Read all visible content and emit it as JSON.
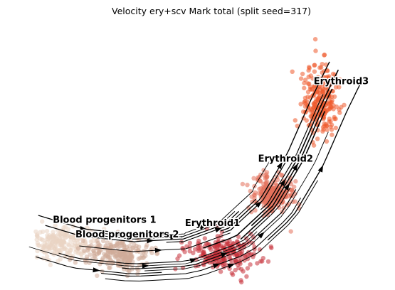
{
  "chart_data": {
    "type": "scatter",
    "subtype": "umap-velocity-stream",
    "title": "Velocity ery+scv Mark total (split seed=317)",
    "xlabel": "",
    "ylabel": "",
    "grid": false,
    "axes_visible": false,
    "legend": "on-data",
    "clusters": [
      {
        "name": "Blood progenitors 1",
        "color": "#ead3c2",
        "center": [
          1.6,
          1.4
        ],
        "spread": [
          1.1,
          0.55
        ]
      },
      {
        "name": "Blood progenitors 2",
        "color": "#cfab99",
        "center": [
          3.2,
          1.0
        ],
        "spread": [
          1.1,
          0.5
        ]
      },
      {
        "name": "Erythroid1",
        "color": "#c7323a",
        "center": [
          6.2,
          1.1
        ],
        "spread": [
          1.1,
          0.6
        ]
      },
      {
        "name": "Erythroid2",
        "color": "#e3705a",
        "center": [
          7.6,
          3.1
        ],
        "spread": [
          0.8,
          0.7
        ]
      },
      {
        "name": "Erythroid3",
        "color": "#ef5a2c",
        "center": [
          9.0,
          6.3
        ],
        "spread": [
          0.7,
          1.2
        ]
      }
    ],
    "xlim": [
      0,
      11
    ],
    "ylim": [
      0,
      9
    ]
  }
}
